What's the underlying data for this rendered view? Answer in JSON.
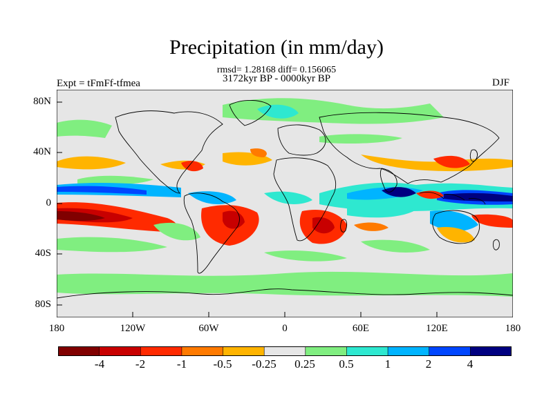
{
  "title": "Precipitation (in mm/day)",
  "stats_line": "rmsd= 1.28168 diff= 0.156065",
  "period": "3172kyr BP - 0000kyr BP",
  "experiment": "Expt = tFmFf-tfmea",
  "season": "DJF",
  "colors": {
    "background": "#e6e6e6",
    "scale": [
      "#800000",
      "#c80000",
      "#ff2a00",
      "#ff7a00",
      "#ffb400",
      "#e6e6e6",
      "#80ee80",
      "#2ee8d0",
      "#00b4ff",
      "#0046ff",
      "#000080"
    ]
  },
  "map": {
    "lat_ticks": [
      "80N",
      "40N",
      "0",
      "40S",
      "80S"
    ],
    "lon_ticks": [
      "180",
      "120W",
      "60W",
      "0",
      "60E",
      "120E",
      "180"
    ]
  },
  "colorbar": {
    "labels": [
      "-4",
      "-2",
      "-1",
      "-0.5",
      "-0.25",
      "0.25",
      "0.5",
      "1",
      "2",
      "4"
    ]
  }
}
